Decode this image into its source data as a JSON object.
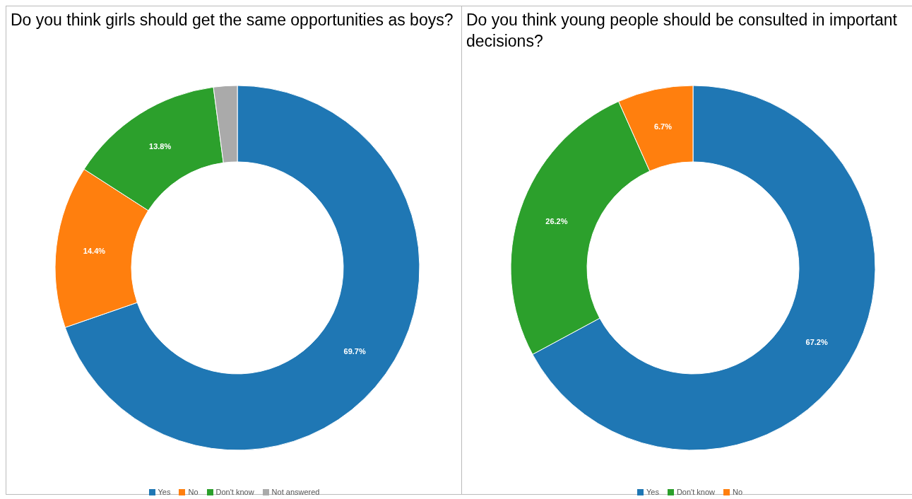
{
  "chart_data": [
    {
      "type": "donut",
      "title": "Do you think girls should get the same opportunities as boys?",
      "categories": [
        "Yes",
        "No",
        "Don't know",
        "Not answered"
      ],
      "values": [
        69.7,
        14.4,
        13.8,
        2.1
      ],
      "colors": [
        "#1f77b4",
        "#ff7f0e",
        "#2ca02c",
        "#aaaaaa"
      ],
      "value_labels": [
        "69.7%",
        "14.4%",
        "13.8%",
        null
      ],
      "legend": "bottom"
    },
    {
      "type": "donut",
      "title": "Do you think young people should be consulted in important decisions?",
      "categories": [
        "Yes",
        "Don't know",
        "No"
      ],
      "values": [
        67.2,
        26.2,
        6.7
      ],
      "colors": [
        "#1f77b4",
        "#2ca02c",
        "#ff7f0e"
      ],
      "value_labels": [
        "67.2%",
        "26.2%",
        "6.7%"
      ],
      "legend": "bottom"
    }
  ]
}
